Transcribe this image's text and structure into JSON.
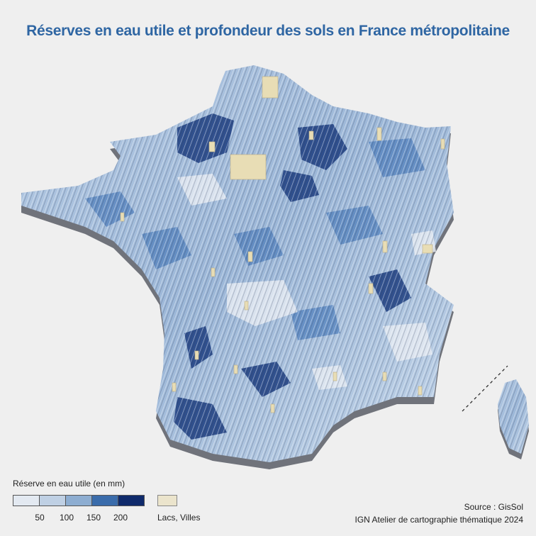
{
  "title": "Réserves en eau utile et profondeur des sols en France métropolitaine",
  "legend": {
    "title": "Réserve en eau utile (en mm)",
    "classes": [
      {
        "color": "#e3e9f1"
      },
      {
        "color": "#bfd0e4"
      },
      {
        "color": "#8dadd1"
      },
      {
        "color": "#3a6cab"
      },
      {
        "color": "#0f2a6b"
      }
    ],
    "ticks": [
      "50",
      "100",
      "150",
      "200"
    ],
    "lakes_color": "#ebe4cc",
    "lakes_label": "Lacs, Villes"
  },
  "source": {
    "line1": "Source : GisSol",
    "line2": "IGN Atelier de cartographie thématique 2024"
  },
  "colors": {
    "land_light": "#c9d8ea",
    "land_mid": "#8fadd1",
    "land_dark": "#23478a",
    "relief_shadow": "#3b3f4a",
    "relief_light": "#ffffff",
    "city": "#e8ddb5"
  }
}
